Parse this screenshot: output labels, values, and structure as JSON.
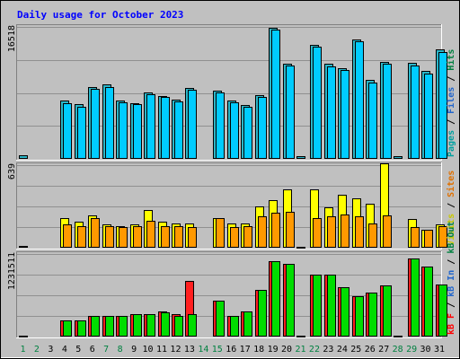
{
  "chart_data": [
    {
      "type": "bar",
      "title": "Daily usage for October 2023",
      "ylabel_max": "16518",
      "ylim": [
        0,
        16518
      ],
      "legend": [
        {
          "label": "Pages",
          "color": "#00a0a0"
        },
        {
          "label": "Files",
          "color": "#2266cc"
        },
        {
          "label": "Hits",
          "color": "#008040"
        }
      ],
      "categories": [
        "1",
        "2",
        "3",
        "4",
        "5",
        "6",
        "7",
        "8",
        "9",
        "10",
        "11",
        "12",
        "13",
        "14",
        "15",
        "16",
        "17",
        "18",
        "19",
        "20",
        "21",
        "22",
        "23",
        "24",
        "25",
        "26",
        "27",
        "28",
        "29",
        "30",
        "31"
      ],
      "series": [
        {
          "name": "Hits",
          "color": "#2bb6c8",
          "values": [
            400,
            0,
            0,
            7300,
            6800,
            9000,
            9300,
            7300,
            7000,
            8300,
            7900,
            7400,
            8900,
            0,
            8500,
            7300,
            6700,
            8000,
            16400,
            11900,
            300,
            14300,
            11900,
            11300,
            15000,
            9900,
            12100,
            300,
            12000,
            11000,
            13700
          ]
        },
        {
          "name": "Files",
          "color": "#00ccff",
          "values": [
            0,
            0,
            0,
            7000,
            6500,
            8800,
            9000,
            7100,
            6800,
            8100,
            7700,
            7200,
            8700,
            0,
            8300,
            7100,
            6500,
            7800,
            16200,
            11700,
            0,
            14100,
            11600,
            11100,
            14700,
            9600,
            11900,
            0,
            11700,
            10700,
            13400
          ]
        }
      ]
    },
    {
      "type": "bar",
      "ylabel_max": "639",
      "ylim": [
        0,
        639
      ],
      "legend": [
        {
          "label": "Visits",
          "color": "#c8c800"
        },
        {
          "label": "Sites",
          "color": "#e07000"
        }
      ],
      "categories": [
        "1",
        "2",
        "3",
        "4",
        "5",
        "6",
        "7",
        "8",
        "9",
        "10",
        "11",
        "12",
        "13",
        "14",
        "15",
        "16",
        "17",
        "18",
        "19",
        "20",
        "21",
        "22",
        "23",
        "24",
        "25",
        "26",
        "27",
        "28",
        "29",
        "30",
        "31"
      ],
      "series": [
        {
          "name": "Visits",
          "color": "#ffff00",
          "values": [
            12,
            0,
            0,
            230,
            200,
            250,
            180,
            170,
            180,
            290,
            200,
            190,
            190,
            0,
            230,
            190,
            190,
            320,
            370,
            450,
            5,
            450,
            310,
            410,
            380,
            340,
            650,
            0,
            220,
            140,
            180
          ]
        },
        {
          "name": "Sites",
          "color": "#ff9900",
          "values": [
            0,
            0,
            0,
            180,
            170,
            230,
            170,
            160,
            170,
            210,
            170,
            170,
            160,
            0,
            230,
            160,
            170,
            240,
            270,
            280,
            0,
            230,
            240,
            260,
            240,
            190,
            250,
            0,
            160,
            140,
            170
          ]
        }
      ]
    },
    {
      "type": "bar",
      "ylabel_max": "1231511",
      "ylim": [
        0,
        1231511
      ],
      "legend": [
        {
          "label": "kB F",
          "color": "#ff0000"
        },
        {
          "label": "kB In",
          "color": "#2266cc"
        },
        {
          "label": "kB Out",
          "color": "#008040"
        }
      ],
      "categories": [
        "1",
        "2",
        "3",
        "4",
        "5",
        "6",
        "7",
        "8",
        "9",
        "10",
        "11",
        "12",
        "13",
        "14",
        "15",
        "16",
        "17",
        "18",
        "19",
        "20",
        "21",
        "22",
        "23",
        "24",
        "25",
        "26",
        "27",
        "28",
        "29",
        "30",
        "31"
      ],
      "series": [
        {
          "name": "kB F",
          "color": "#ff2020",
          "values": [
            15000,
            0,
            0,
            240000,
            240000,
            310000,
            310000,
            310000,
            330000,
            330000,
            380000,
            330000,
            830000,
            0,
            540000,
            310000,
            370000,
            700000,
            1120000,
            1090000,
            15000,
            930000,
            930000,
            740000,
            600000,
            650000,
            760000,
            15000,
            1170000,
            1040000,
            780000
          ]
        },
        {
          "name": "kB Out",
          "color": "#00dd00",
          "values": [
            0,
            0,
            0,
            240000,
            240000,
            310000,
            310000,
            310000,
            330000,
            330000,
            360000,
            310000,
            330000,
            0,
            540000,
            310000,
            370000,
            700000,
            1120000,
            1090000,
            0,
            930000,
            930000,
            740000,
            600000,
            650000,
            760000,
            0,
            1170000,
            1040000,
            780000
          ]
        }
      ]
    }
  ],
  "x_labels": [
    {
      "t": "1",
      "c": "#008040"
    },
    {
      "t": "2",
      "c": "#008040"
    },
    {
      "t": "3",
      "c": "#000000"
    },
    {
      "t": "4",
      "c": "#000000"
    },
    {
      "t": "5",
      "c": "#000000"
    },
    {
      "t": "6",
      "c": "#000000"
    },
    {
      "t": "7",
      "c": "#008040"
    },
    {
      "t": "8",
      "c": "#008040"
    },
    {
      "t": "9",
      "c": "#000000"
    },
    {
      "t": "10",
      "c": "#000000"
    },
    {
      "t": "11",
      "c": "#000000"
    },
    {
      "t": "12",
      "c": "#000000"
    },
    {
      "t": "13",
      "c": "#000000"
    },
    {
      "t": "14",
      "c": "#008040"
    },
    {
      "t": "15",
      "c": "#008040"
    },
    {
      "t": "16",
      "c": "#000000"
    },
    {
      "t": "17",
      "c": "#000000"
    },
    {
      "t": "18",
      "c": "#000000"
    },
    {
      "t": "19",
      "c": "#000000"
    },
    {
      "t": "20",
      "c": "#000000"
    },
    {
      "t": "21",
      "c": "#008040"
    },
    {
      "t": "22",
      "c": "#008040"
    },
    {
      "t": "23",
      "c": "#000000"
    },
    {
      "t": "24",
      "c": "#000000"
    },
    {
      "t": "25",
      "c": "#000000"
    },
    {
      "t": "26",
      "c": "#000000"
    },
    {
      "t": "27",
      "c": "#000000"
    },
    {
      "t": "28",
      "c": "#008040"
    },
    {
      "t": "29",
      "c": "#008040"
    },
    {
      "t": "30",
      "c": "#000000"
    },
    {
      "t": "31",
      "c": "#000000"
    }
  ],
  "colors": {
    "background": "#c0c0c0",
    "plot_bg": "#c0c0c0",
    "title": "#0000ff",
    "grid": "#909090"
  }
}
